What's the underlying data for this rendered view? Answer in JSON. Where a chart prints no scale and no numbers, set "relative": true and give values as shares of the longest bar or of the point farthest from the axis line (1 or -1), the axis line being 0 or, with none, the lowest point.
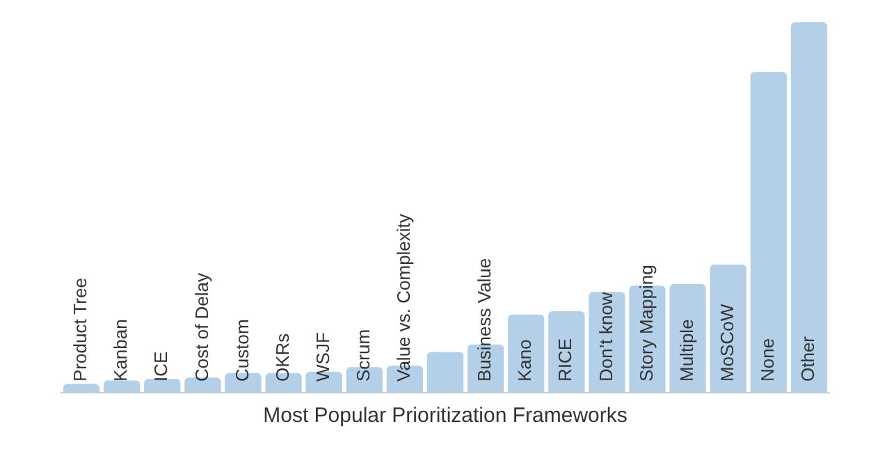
{
  "chart_data": {
    "type": "bar",
    "title": "Most Popular Prioritization Frameworks",
    "relative": true,
    "color": "#b3d0e8",
    "categories": [
      "Product Tree",
      "Kanban",
      "ICE",
      "Cost of Delay",
      "Custom",
      "OKRs",
      "WSJF",
      "Scrum",
      "Value vs. Complexity",
      null,
      "Business Value",
      "Kano",
      "RICE",
      "Don’t know",
      "Story Mapping",
      "Multiple",
      "MoSCoW",
      "None",
      "Other"
    ],
    "values": [
      0.024,
      0.033,
      0.037,
      0.041,
      0.053,
      0.053,
      0.057,
      0.069,
      0.073,
      0.11,
      0.13,
      0.211,
      0.22,
      0.272,
      0.289,
      0.293,
      0.346,
      0.866,
      1
    ],
    "legend": false
  }
}
